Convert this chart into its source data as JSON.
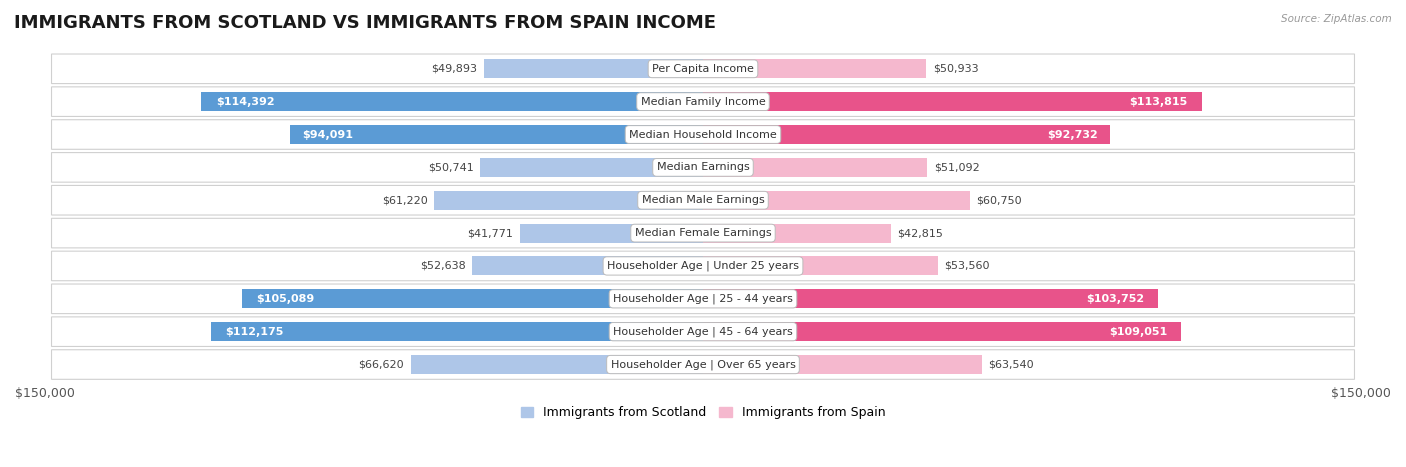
{
  "title": "IMMIGRANTS FROM SCOTLAND VS IMMIGRANTS FROM SPAIN INCOME",
  "source": "Source: ZipAtlas.com",
  "categories": [
    "Per Capita Income",
    "Median Family Income",
    "Median Household Income",
    "Median Earnings",
    "Median Male Earnings",
    "Median Female Earnings",
    "Householder Age | Under 25 years",
    "Householder Age | 25 - 44 years",
    "Householder Age | 45 - 64 years",
    "Householder Age | Over 65 years"
  ],
  "scotland_values": [
    49893,
    114392,
    94091,
    50741,
    61220,
    41771,
    52638,
    105089,
    112175,
    66620
  ],
  "spain_values": [
    50933,
    113815,
    92732,
    51092,
    60750,
    42815,
    53560,
    103752,
    109051,
    63540
  ],
  "scotland_labels": [
    "$49,893",
    "$114,392",
    "$94,091",
    "$50,741",
    "$61,220",
    "$41,771",
    "$52,638",
    "$105,089",
    "$112,175",
    "$66,620"
  ],
  "spain_labels": [
    "$50,933",
    "$113,815",
    "$92,732",
    "$51,092",
    "$60,750",
    "$42,815",
    "$53,560",
    "$103,752",
    "$109,051",
    "$63,540"
  ],
  "scotland_color_light": "#aec6e8",
  "scotland_color_dark": "#5b9bd5",
  "spain_color_light": "#f5b8ce",
  "spain_color_dark": "#e8538a",
  "threshold": 80000,
  "max_value": 150000,
  "bar_height": 0.58,
  "bg_color": "#ffffff",
  "row_bg": "#ffffff",
  "row_border": "#d0d0d0",
  "title_fontsize": 13,
  "label_fontsize": 8.0,
  "axis_label_fontsize": 9,
  "legend_fontsize": 9,
  "legend_label_scotland": "Immigrants from Scotland",
  "legend_label_spain": "Immigrants from Spain"
}
